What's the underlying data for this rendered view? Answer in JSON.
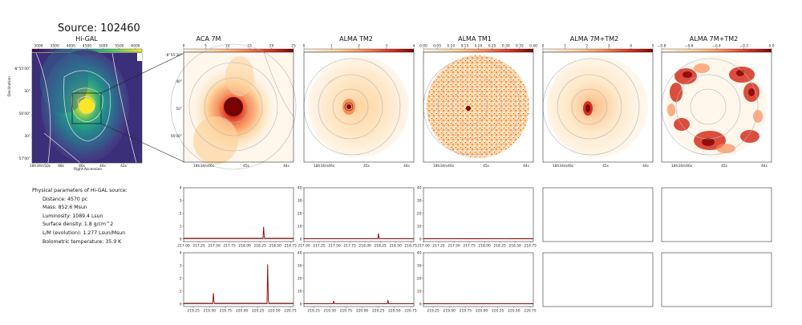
{
  "source_title": "Source: 102460",
  "panels": [
    {
      "title": "Hi-GAL",
      "colorbar_ticks": [
        "3000",
        "3500",
        "4000",
        "4500",
        "5000",
        "5500",
        "6000"
      ],
      "colormap": "viridis"
    },
    {
      "title": "ACA 7M",
      "colorbar_ticks": [
        "0",
        "5",
        "10",
        "15",
        "20",
        "25"
      ],
      "colormap": "orrd"
    },
    {
      "title": "ALMA TM2",
      "colorbar_ticks": [
        "0",
        "1",
        "2",
        "3",
        "4"
      ],
      "colormap": "orrd"
    },
    {
      "title": "ALMA TM1",
      "colorbar_ticks": [
        "0.00",
        "0.05",
        "0.10",
        "0.15",
        "0.20",
        "0.25",
        "0.30",
        "0.35",
        "0.40"
      ],
      "colormap": "orrd"
    },
    {
      "title": "ALMA 7M+TM2",
      "colorbar_ticks": [
        "0",
        "1",
        "2",
        "3",
        "4",
        "5"
      ],
      "colormap": "orrd"
    },
    {
      "title": "ALMA 7M+TM2",
      "colorbar_ticks": [
        "−0.8",
        "−0.6",
        "−0.4",
        "−0.2",
        "0.0"
      ],
      "colormap": "orrd"
    }
  ],
  "higal_axes": {
    "ylabel": "Declination",
    "xlabel": "Right Ascension",
    "yticks": [
      "-8°55'00\"",
      "30\"",
      "56'00\"",
      "30\"",
      "57'00\""
    ],
    "xticks": [
      "18h34m50s",
      "48s",
      "46s",
      "44s",
      "42s"
    ]
  },
  "map_axes": {
    "xticks": [
      "18h34m46s",
      "45s",
      "44s"
    ],
    "yticks_aca": [
      "-8°55'30\"",
      "40\"",
      "50\"",
      "56'00\""
    ]
  },
  "params": {
    "heading": "Physical parameters of Hi-GAL source:",
    "lines": [
      "Distance: 4570 pc",
      "Mass: 852.6 Msun",
      "Luminosity: 1089.4 Lsun",
      "Surface density: 1.8 g/cm^2",
      "L/M (evolution): 1.277 Lsun/Msun",
      "Bolometric temperature: 35.9 K"
    ]
  },
  "chart_data": [
    {
      "type": "line",
      "panel": "ACA 7M spectrum, lower sideband",
      "xlim": [
        217.0,
        218.8
      ],
      "ylim": [
        -0.2,
        4
      ],
      "xticks": [
        217.0,
        217.25,
        217.5,
        217.75,
        218.0,
        218.25,
        218.5,
        218.75
      ],
      "yticks": [
        0,
        1,
        2,
        3,
        4
      ],
      "x": [
        217.0,
        217.5,
        218.0,
        218.3,
        218.31,
        218.32,
        218.33,
        218.5,
        218.8
      ],
      "y": [
        0.05,
        0.05,
        0.05,
        0.05,
        0.95,
        0.15,
        0.05,
        0.05,
        0.05
      ]
    },
    {
      "type": "line",
      "panel": "ALMA TM2 spectrum, lower sideband",
      "xlim": [
        217.0,
        218.8
      ],
      "ylim": [
        -2,
        40
      ],
      "xticks": [
        217.0,
        217.25,
        217.5,
        217.75,
        218.0,
        218.25,
        218.5,
        218.75
      ],
      "yticks": [
        0,
        10,
        20,
        30,
        40
      ],
      "x": [
        217.0,
        217.5,
        218.0,
        218.21,
        218.22,
        218.23,
        218.24,
        218.5,
        218.8
      ],
      "y": [
        0.3,
        0.3,
        0.3,
        0.3,
        4.5,
        0.8,
        0.3,
        0.3,
        0.3
      ]
    },
    {
      "type": "line",
      "panel": "ALMA TM1 spectrum, lower sideband",
      "xlim": [
        217.0,
        218.8
      ],
      "ylim": [
        -2,
        40
      ],
      "xticks": [
        217.0,
        217.25,
        217.5,
        217.75,
        218.0,
        218.25,
        218.5,
        218.75
      ],
      "yticks": [
        0,
        10,
        20,
        30,
        40
      ],
      "x": [
        217.0,
        217.4,
        217.8,
        218.2,
        218.8
      ],
      "y": [
        0.2,
        0.3,
        0.2,
        0.3,
        0.2
      ]
    },
    {
      "type": "line",
      "panel": "ACA 7M spectrum, upper sideband",
      "xlim": [
        219.1,
        220.8
      ],
      "ylim": [
        -0.2,
        4
      ],
      "xticks": [
        219.25,
        219.5,
        219.75,
        220.0,
        220.25,
        220.5,
        220.75
      ],
      "yticks": [
        0,
        1,
        2,
        3,
        4
      ],
      "x": [
        219.1,
        219.55,
        219.56,
        219.57,
        219.58,
        220.0,
        220.39,
        220.4,
        220.41,
        220.42,
        220.8
      ],
      "y": [
        0.05,
        0.05,
        0.85,
        0.15,
        0.05,
        0.05,
        0.05,
        3.1,
        0.3,
        0.05,
        0.05
      ]
    },
    {
      "type": "line",
      "panel": "ALMA TM2 spectrum, upper sideband",
      "xlim": [
        219.1,
        220.8
      ],
      "ylim": [
        -2,
        40
      ],
      "xticks": [
        219.25,
        219.5,
        219.75,
        220.0,
        220.25,
        220.5,
        220.75
      ],
      "yticks": [
        0,
        10,
        20,
        30,
        40
      ],
      "x": [
        219.1,
        219.55,
        219.56,
        219.57,
        220.0,
        220.39,
        220.4,
        220.41,
        220.8
      ],
      "y": [
        0.3,
        0.3,
        2.5,
        0.3,
        0.3,
        0.3,
        3.0,
        0.3,
        0.3
      ]
    },
    {
      "type": "line",
      "panel": "ALMA TM1 spectrum, upper sideband",
      "xlim": [
        219.1,
        220.8
      ],
      "ylim": [
        -2,
        40
      ],
      "xticks": [
        219.25,
        219.5,
        219.75,
        220.0,
        220.25,
        220.5,
        220.75
      ],
      "yticks": [
        0,
        10,
        20,
        30,
        40
      ],
      "x": [
        219.1,
        219.5,
        220.0,
        220.5,
        220.8
      ],
      "y": [
        0.2,
        0.3,
        0.2,
        0.3,
        0.2
      ]
    }
  ],
  "colors": {
    "spectrum": "#8b0000",
    "zero_line": "#555555",
    "contour": "#b5b5b5",
    "frame": "#333333"
  }
}
